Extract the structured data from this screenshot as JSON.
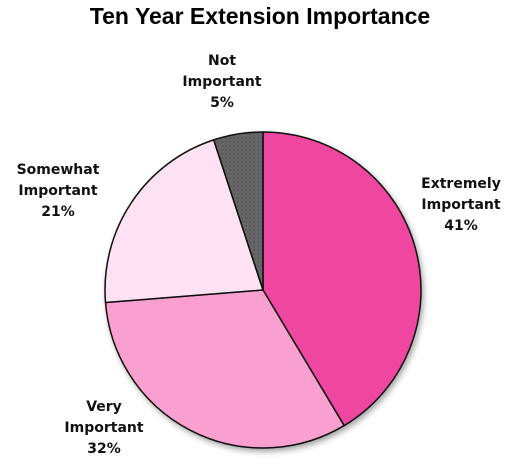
{
  "chart_data": {
    "type": "pie",
    "title": "Ten Year Extension Importance",
    "slices": [
      {
        "label_lines": [
          "Extremely",
          "Important"
        ],
        "value": 41,
        "value_label": "41%",
        "color": "#ef47a0"
      },
      {
        "label_lines": [
          "Very",
          "Important"
        ],
        "value": 32,
        "value_label": "32%",
        "color": "#f9a0d1"
      },
      {
        "label_lines": [
          "Somewhat",
          "Important"
        ],
        "value": 21,
        "value_label": "21%",
        "color": "#fde2f3"
      },
      {
        "label_lines": [
          "Not",
          "Important"
        ],
        "value": 5,
        "value_label": "5%",
        "color": "#666666"
      }
    ],
    "start_angle_deg": 0,
    "direction": "clockwise",
    "legend": "none"
  }
}
